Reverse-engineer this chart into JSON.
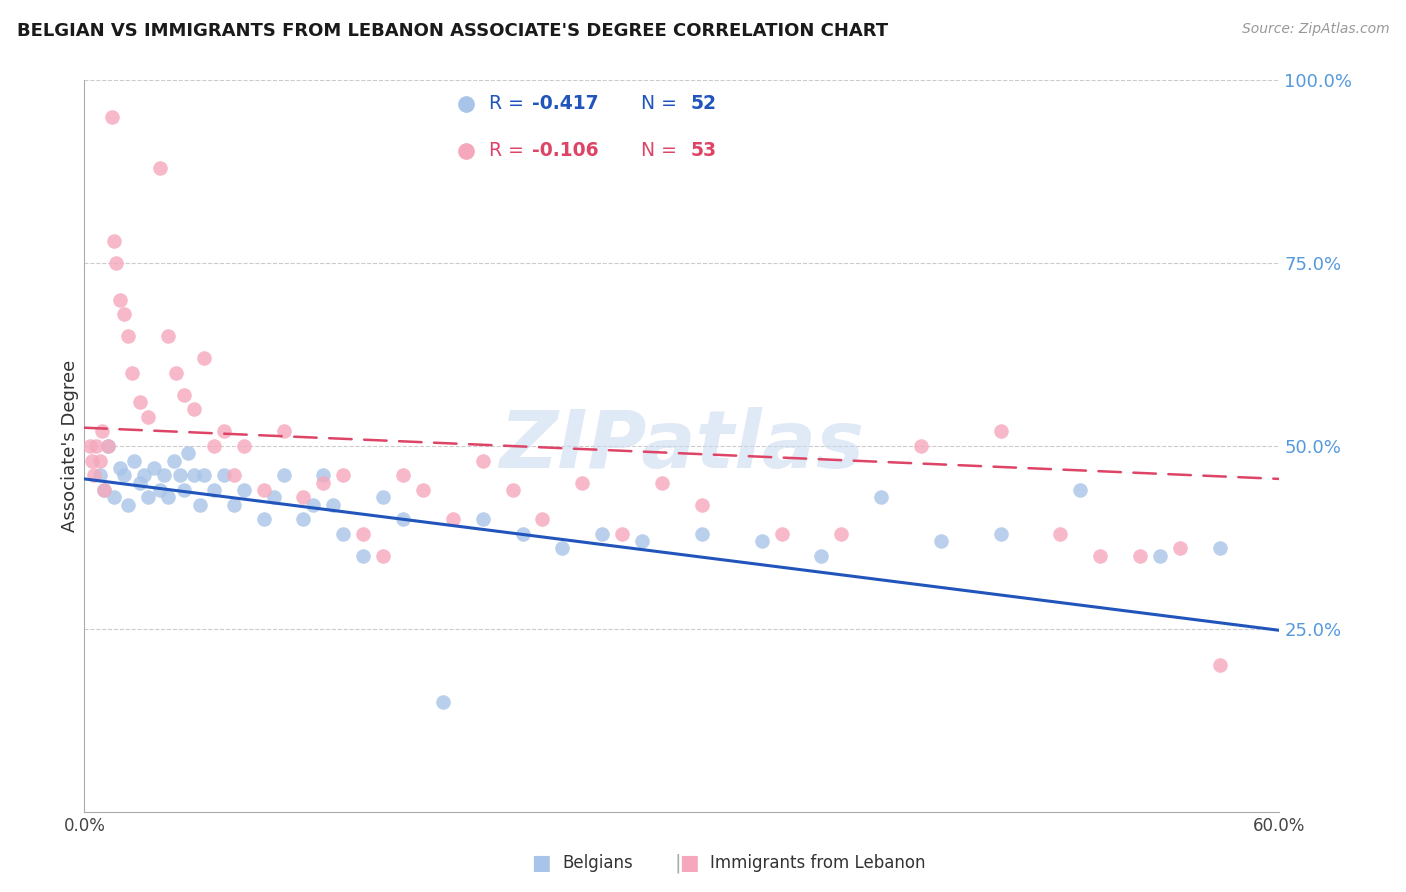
{
  "title": "BELGIAN VS IMMIGRANTS FROM LEBANON ASSOCIATE'S DEGREE CORRELATION CHART",
  "source": "Source: ZipAtlas.com",
  "ylabel": "Associate's Degree",
  "xmin": 0.0,
  "xmax": 0.6,
  "ymin": 0.0,
  "ymax": 1.0,
  "legend_r_blue": "-0.417",
  "legend_n_blue": "52",
  "legend_r_pink": "-0.106",
  "legend_n_pink": "53",
  "blue_color": "#a8c4e8",
  "pink_color": "#f5a8bc",
  "blue_line_color": "#2255bb",
  "pink_line_color": "#dd4466",
  "watermark": "ZIPatlas",
  "blue_scatter_x": [
    0.008,
    0.01,
    0.012,
    0.015,
    0.018,
    0.02,
    0.022,
    0.025,
    0.028,
    0.03,
    0.032,
    0.035,
    0.038,
    0.04,
    0.042,
    0.045,
    0.048,
    0.05,
    0.052,
    0.055,
    0.058,
    0.06,
    0.065,
    0.07,
    0.075,
    0.08,
    0.09,
    0.095,
    0.1,
    0.11,
    0.115,
    0.12,
    0.125,
    0.13,
    0.14,
    0.15,
    0.16,
    0.18,
    0.2,
    0.22,
    0.24,
    0.26,
    0.28,
    0.31,
    0.34,
    0.37,
    0.4,
    0.43,
    0.46,
    0.5,
    0.54,
    0.57
  ],
  "blue_scatter_y": [
    0.46,
    0.44,
    0.5,
    0.43,
    0.47,
    0.46,
    0.42,
    0.48,
    0.45,
    0.46,
    0.43,
    0.47,
    0.44,
    0.46,
    0.43,
    0.48,
    0.46,
    0.44,
    0.49,
    0.46,
    0.42,
    0.46,
    0.44,
    0.46,
    0.42,
    0.44,
    0.4,
    0.43,
    0.46,
    0.4,
    0.42,
    0.46,
    0.42,
    0.38,
    0.35,
    0.43,
    0.4,
    0.15,
    0.4,
    0.38,
    0.36,
    0.38,
    0.37,
    0.38,
    0.37,
    0.35,
    0.43,
    0.37,
    0.38,
    0.44,
    0.35,
    0.36
  ],
  "pink_scatter_x": [
    0.003,
    0.004,
    0.005,
    0.006,
    0.008,
    0.009,
    0.01,
    0.012,
    0.014,
    0.015,
    0.016,
    0.018,
    0.02,
    0.022,
    0.024,
    0.028,
    0.032,
    0.038,
    0.042,
    0.046,
    0.05,
    0.055,
    0.06,
    0.065,
    0.07,
    0.075,
    0.08,
    0.09,
    0.1,
    0.11,
    0.12,
    0.13,
    0.14,
    0.15,
    0.16,
    0.17,
    0.185,
    0.2,
    0.215,
    0.23,
    0.25,
    0.27,
    0.29,
    0.31,
    0.35,
    0.38,
    0.42,
    0.46,
    0.49,
    0.51,
    0.53,
    0.55,
    0.57
  ],
  "pink_scatter_y": [
    0.5,
    0.48,
    0.46,
    0.5,
    0.48,
    0.52,
    0.44,
    0.5,
    0.95,
    0.78,
    0.75,
    0.7,
    0.68,
    0.65,
    0.6,
    0.56,
    0.54,
    0.88,
    0.65,
    0.6,
    0.57,
    0.55,
    0.62,
    0.5,
    0.52,
    0.46,
    0.5,
    0.44,
    0.52,
    0.43,
    0.45,
    0.46,
    0.38,
    0.35,
    0.46,
    0.44,
    0.4,
    0.48,
    0.44,
    0.4,
    0.45,
    0.38,
    0.45,
    0.42,
    0.38,
    0.38,
    0.5,
    0.52,
    0.38,
    0.35,
    0.35,
    0.36,
    0.2
  ],
  "blue_line_x0": 0.0,
  "blue_line_x1": 0.6,
  "blue_line_y0": 0.455,
  "blue_line_y1": 0.248,
  "pink_line_x0": 0.0,
  "pink_line_x1": 0.6,
  "pink_line_y0": 0.525,
  "pink_line_y1": 0.455,
  "ytick_positions": [
    0.25,
    0.5,
    0.75,
    1.0
  ],
  "ytick_labels": [
    "25.0%",
    "50.0%",
    "75.0%",
    "100.0%"
  ]
}
